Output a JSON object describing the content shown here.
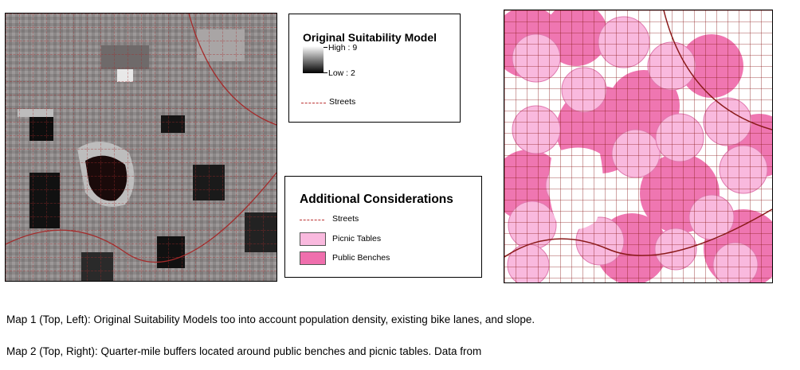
{
  "legend1": {
    "title": "Original Suitability Model",
    "high_label": "High : 9",
    "low_label": "Low : 2",
    "streets_label": "Streets"
  },
  "legend2": {
    "title": "Additional Considerations",
    "streets_label": "Streets",
    "picnic_label": "Picnic Tables",
    "benches_label": "Public Benches"
  },
  "colors": {
    "street_line": "#b22222",
    "picnic_fill": "#f9b9de",
    "bench_fill": "#ef6fad",
    "suitability_high": "#ffffff",
    "suitability_low": "#000000"
  },
  "captions": {
    "map1": "Map 1 (Top, Left): Original Suitability Models too into account population density, existing bike lanes, and slope.",
    "map2": "Map 2 (Top, Right): Quarter-mile buffers located around public benches and picnic tables. Data from"
  }
}
